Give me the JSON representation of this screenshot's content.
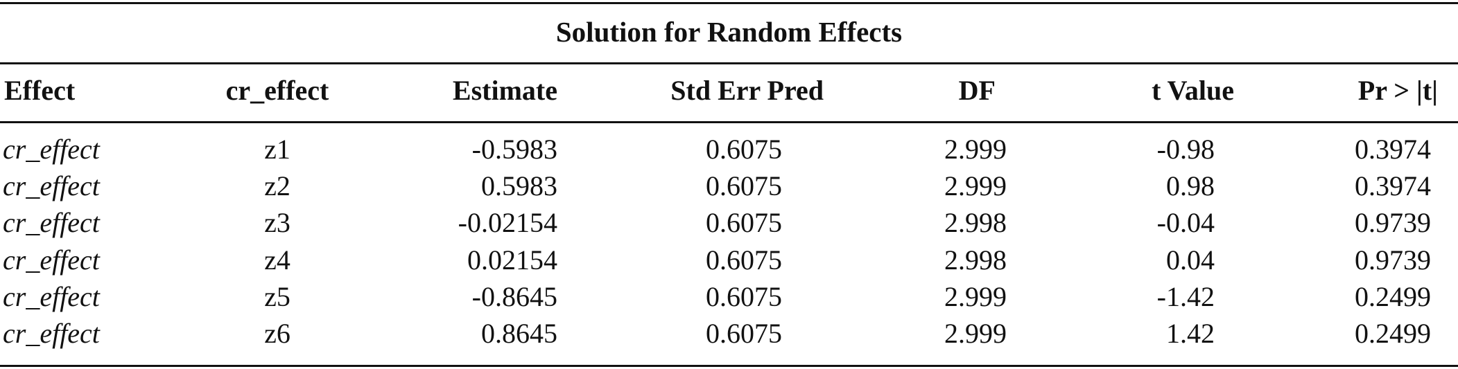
{
  "table": {
    "title": "Solution for Random Effects",
    "columns": [
      "Effect",
      "cr_effect",
      "Estimate",
      "Std Err Pred",
      "DF",
      "t Value",
      "Pr > |t|"
    ],
    "rows": [
      [
        "cr_effect",
        "z1",
        "-0.5983",
        "0.6075",
        "2.999",
        "-0.98",
        "0.3974"
      ],
      [
        "cr_effect",
        "z2",
        "0.5983",
        "0.6075",
        "2.999",
        "0.98",
        "0.3974"
      ],
      [
        "cr_effect",
        "z3",
        "-0.02154",
        "0.6075",
        "2.998",
        "-0.04",
        "0.9739"
      ],
      [
        "cr_effect",
        "z4",
        "0.02154",
        "0.6075",
        "2.998",
        "0.04",
        "0.9739"
      ],
      [
        "cr_effect",
        "z5",
        "-0.8645",
        "0.6075",
        "2.999",
        "-1.42",
        "0.2499"
      ],
      [
        "cr_effect",
        "z6",
        "0.8645",
        "0.6075",
        "2.999",
        "1.42",
        "0.2499"
      ]
    ]
  }
}
